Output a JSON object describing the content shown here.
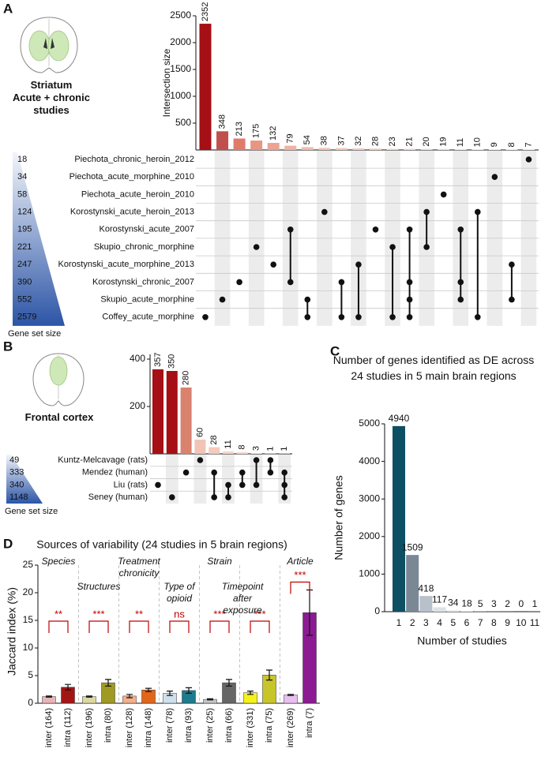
{
  "chart_data": [
    {
      "panel": "A",
      "type": "upset",
      "title": "Striatum",
      "subtitle": "Acute + chronic studies",
      "ylabel": "Intersection size",
      "set_size_label": "Gene set size",
      "sets": [
        "Piechota_chronic_heroin_2012",
        "Piechota_acute_morphine_2010",
        "Piechota_acute_heroin_2010",
        "Korostynski_acute_heroin_2013",
        "Korostynski_acute_2007",
        "Skupio_chronic_morphine",
        "Korostynski_acute_morphine_2013",
        "Korostynski_chronic_2007",
        "Skupio_acute_morphine",
        "Coffey_acute_morphine"
      ],
      "set_sizes": [
        18,
        34,
        58,
        124,
        195,
        221,
        247,
        390,
        552,
        2579
      ],
      "values": [
        2352,
        348,
        213,
        175,
        132,
        79,
        54,
        38,
        37,
        32,
        28,
        23,
        21,
        20,
        19,
        11,
        10,
        9,
        8,
        7
      ],
      "intersections": [
        [
          9
        ],
        [
          8
        ],
        [
          7
        ],
        [
          5
        ],
        [
          6
        ],
        [
          4,
          7
        ],
        [
          8,
          9
        ],
        [
          3
        ],
        [
          7,
          9
        ],
        [
          6,
          9
        ],
        [
          4
        ],
        [
          5,
          9
        ],
        [
          4,
          7,
          8,
          9
        ],
        [
          3,
          5
        ],
        [
          2
        ],
        [
          4,
          7,
          8
        ],
        [
          3,
          9
        ],
        [
          1
        ],
        [
          6,
          8
        ],
        [
          0
        ]
      ],
      "colors": [
        "#a50f15",
        "#c0504d",
        "#e07b6a",
        "#e99583",
        "#eda493",
        "#f0b3a3",
        "#f2bcad",
        "#f4c4b6",
        "#f5c9bb",
        "#f6cdc0",
        "#f7d1c5",
        "#f8d5ca",
        "#f8d8ce",
        "#f9dbd2",
        "#f9ded5",
        "#fae1d9",
        "#fae3dc",
        "#fbe6df",
        "#fbe8e2",
        "#fceae5"
      ],
      "ylim": [
        0,
        2500
      ],
      "yticks": [
        500,
        1000,
        1500,
        2000,
        2500
      ]
    },
    {
      "panel": "B",
      "type": "upset",
      "title": "Frontal cortex",
      "set_size_label": "Gene set size",
      "sets": [
        "Kuntz-Melcavage (rats)",
        "Mendez (human)",
        "Liu (rats)",
        "Seney (human)"
      ],
      "set_sizes": [
        49,
        333,
        340,
        1148
      ],
      "values": [
        357,
        350,
        280,
        60,
        28,
        11,
        8,
        3,
        1,
        1
      ],
      "intersections": [
        [
          2
        ],
        [
          3
        ],
        [
          1
        ],
        [
          0
        ],
        [
          1,
          3
        ],
        [
          2,
          3
        ],
        [
          1,
          2
        ],
        [
          0,
          2
        ],
        [
          0,
          1
        ],
        [
          1,
          2,
          3
        ]
      ],
      "colors": [
        "#a50f15",
        "#a50f15",
        "#d9826e",
        "#f2c4b6",
        "#f4cbbd",
        "#f7d7cc",
        "#f8dcd3",
        "#fae3dc",
        "#fbe8e2",
        "#fbe8e2"
      ],
      "ylim": [
        0,
        420
      ],
      "yticks": [
        200,
        400
      ]
    },
    {
      "panel": "C",
      "type": "bar",
      "title": "Number of genes identified as DE across 24 studies in 5 main brain regions",
      "xlabel": "Number of studies",
      "ylabel": "Number of genes",
      "categories": [
        "1",
        "2",
        "3",
        "4",
        "5",
        "6",
        "7",
        "8",
        "9",
        "10",
        "11"
      ],
      "values": [
        4940,
        1509,
        418,
        117,
        34,
        18,
        5,
        3,
        2,
        0,
        1
      ],
      "colors": [
        "#0d4f63",
        "#7a8896",
        "#b8c1ca",
        "#dbe1e7",
        "#e3e7ec",
        "#e3e7ec",
        "#e3e7ec",
        "#e3e7ec",
        "#e3e7ec",
        "#e3e7ec",
        "#e3e7ec"
      ],
      "data_labels": true,
      "ylim": [
        0,
        5000
      ],
      "yticks": [
        0,
        1000,
        2000,
        3000,
        4000,
        5000
      ]
    },
    {
      "panel": "D",
      "type": "bar",
      "title": "Sources of variability (24 studies in 5 brain regions)",
      "ylabel": "Jaccard index (%)",
      "categories": [
        "inter (164)",
        "intra (112)",
        "inter (196)",
        "intra (80)",
        "inter (128)",
        "intra (148)",
        "inter (78)",
        "intra (93)",
        "inter (25)",
        "intra (66)",
        "inter (331)",
        "intra (75)",
        "inter (269)",
        "intra (7)"
      ],
      "values": [
        1.2,
        2.9,
        1.2,
        3.7,
        1.3,
        2.4,
        1.8,
        2.3,
        0.7,
        3.7,
        1.9,
        5.1,
        1.5,
        16.4
      ],
      "errors": [
        0.1,
        0.5,
        0.1,
        0.6,
        0.3,
        0.3,
        0.4,
        0.5,
        0.1,
        0.6,
        0.3,
        0.9,
        0.1,
        4.1
      ],
      "colors": [
        "#e8b4b8",
        "#a31515",
        "#dcd9a0",
        "#a09a22",
        "#f5b08a",
        "#e2661a",
        "#cfe0ec",
        "#1c7b8c",
        "#c6c6c6",
        "#666666",
        "#f4f21c",
        "#c7c52a",
        "#e8bff0",
        "#8c1a93"
      ],
      "groups": [
        {
          "name": "Species",
          "significance": "**"
        },
        {
          "name": "Structures",
          "significance": "***"
        },
        {
          "name": "Treatment chronicity",
          "significance": "**"
        },
        {
          "name": "Type of opioid",
          "significance": "ns"
        },
        {
          "name": "Strain",
          "significance": "***"
        },
        {
          "name": "Timepoint after exposure",
          "significance": "***"
        },
        {
          "name": "Article",
          "significance": "***"
        }
      ],
      "ylim": [
        0,
        25
      ],
      "yticks": [
        0,
        5,
        10,
        15,
        20,
        25
      ]
    }
  ]
}
